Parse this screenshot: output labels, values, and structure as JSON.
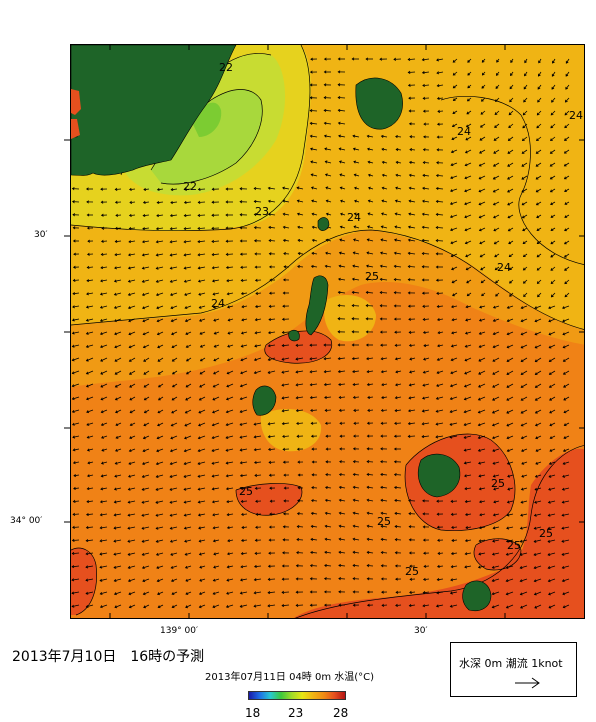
{
  "map": {
    "axis": {
      "lon_labels": [
        "139° 00′",
        "30′"
      ],
      "lat_labels": [
        "30′",
        "34° 00′"
      ]
    },
    "contour_labels": [
      "22",
      "22",
      "23",
      "24",
      "24",
      "24",
      "24",
      "24",
      "25",
      "25",
      "25",
      "25",
      "25",
      "25",
      "25"
    ],
    "colors": {
      "land": "#1e6428",
      "t22": "#a8d83c",
      "t225": "#c8dc32",
      "t23": "#e6d21e",
      "t24": "#f0b414",
      "t245": "#f09a14",
      "t25": "#f08216",
      "t26": "#e6501e",
      "t28": "#b41414"
    },
    "icons": {
      "current_arrows": "arrow-icon"
    }
  },
  "caption": {
    "title": "2013年7月10日　16時の予測",
    "subtitle": "2013年07月11日 04時 0m 水温(°C)"
  },
  "colorbar": {
    "labels": [
      "18",
      "23",
      "28"
    ],
    "min": 18,
    "mid": 23,
    "max": 28
  },
  "legend": {
    "text": "水深 0m 潮流 1knot"
  }
}
